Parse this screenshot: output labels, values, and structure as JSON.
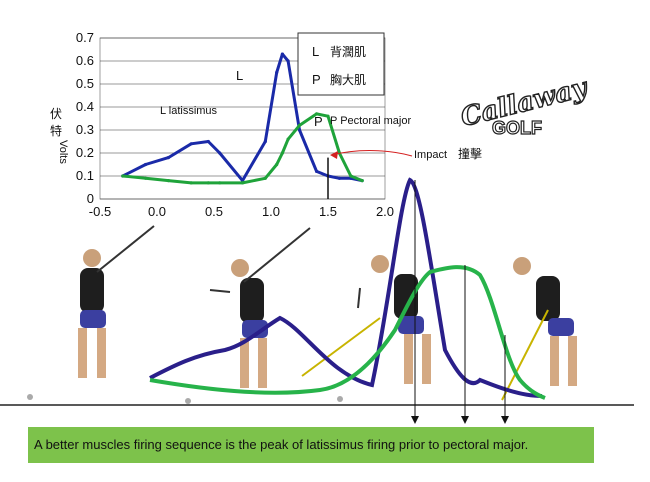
{
  "chart_data": {
    "type": "line",
    "x": [
      -0.3,
      -0.1,
      0.1,
      0.3,
      0.45,
      0.55,
      0.75,
      0.95,
      1.05,
      1.1,
      1.15,
      1.25,
      1.4,
      1.5,
      1.6,
      1.7,
      1.8
    ],
    "series": [
      {
        "name": "L 背濶肌",
        "values": [
          0.1,
          0.15,
          0.18,
          0.24,
          0.25,
          0.2,
          0.08,
          0.25,
          0.55,
          0.63,
          0.6,
          0.3,
          0.12,
          0.1,
          0.09,
          0.09,
          0.08
        ]
      },
      {
        "name": "P 胸大肌",
        "values": [
          0.1,
          0.09,
          0.08,
          0.07,
          0.07,
          0.07,
          0.07,
          0.09,
          0.15,
          0.2,
          0.26,
          0.32,
          0.37,
          0.36,
          0.2,
          0.1,
          0.08
        ]
      }
    ],
    "xticks": [
      "-0.5",
      "0.0",
      "0.5",
      "1.0",
      "1.5",
      "2.0"
    ],
    "yticks": [
      "0",
      "0.1",
      "0.2",
      "0.3",
      "0.4",
      "0.5",
      "0.6",
      "0.7"
    ],
    "xlim": [
      -0.5,
      2.0
    ],
    "ylim": [
      0,
      0.7
    ],
    "ylabel_cn": "伏特",
    "ylabel": "Volts",
    "annotations": {
      "l_marker": "L",
      "latissimus": "L latissimus",
      "p_marker": "P",
      "pectoral": "P Pectoral major",
      "impact": "Impact",
      "impact_cn": "撞擊"
    },
    "impact_x": 1.5,
    "grid": "horizontal"
  },
  "legend": {
    "items": [
      {
        "marker": "L",
        "label": "背濶肌"
      },
      {
        "marker": "P",
        "label": "胸大肌"
      }
    ]
  },
  "logo": {
    "line1": "Callaway",
    "line2": "GOLF"
  },
  "caption": "A better muscles firing sequence is the peak of latissimus firing prior to pectoral major.",
  "colors": {
    "latissimus": "#1a2aa8",
    "pectoral": "#1fa33a",
    "overlay_lat": "#2a1f8a",
    "overlay_pec": "#27b34a",
    "impact_arrow": "#d42020",
    "caption_bg": "#7dc24b"
  }
}
